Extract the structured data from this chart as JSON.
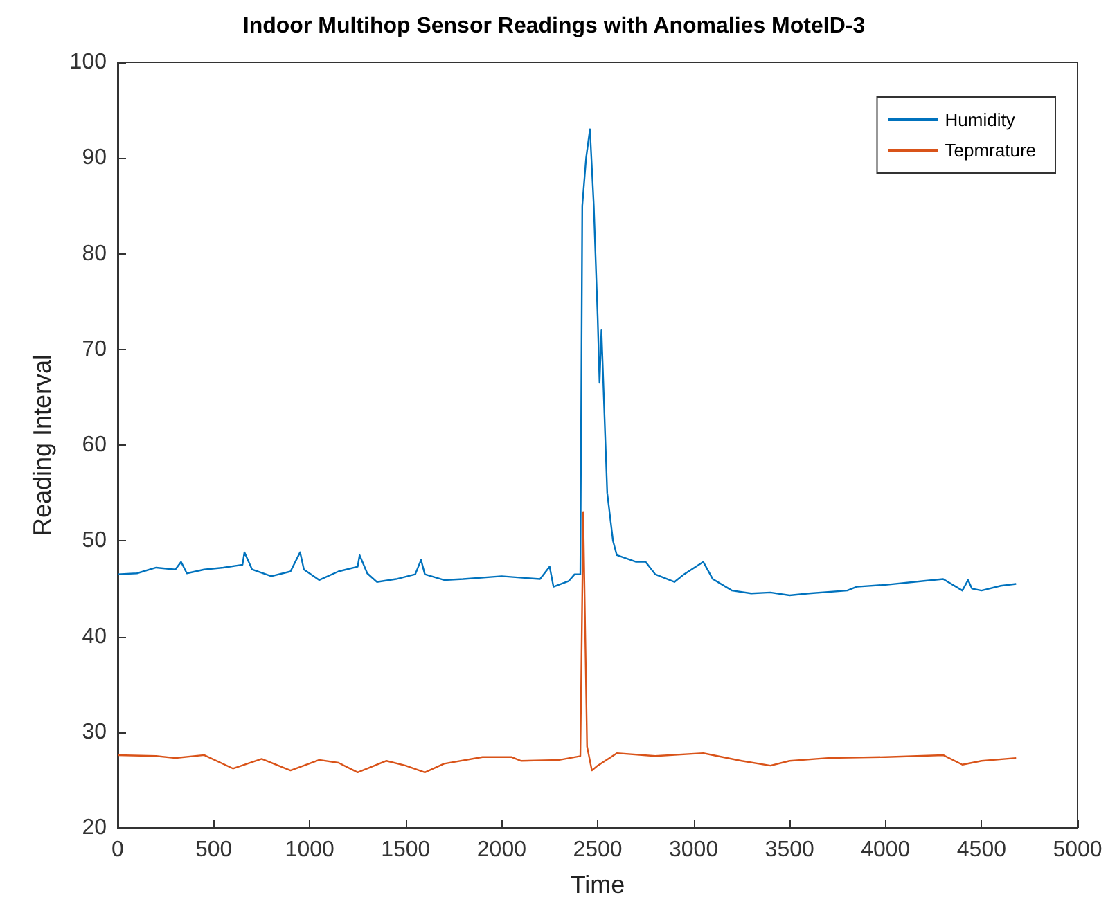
{
  "chart_data": {
    "type": "line",
    "title": "Indoor Multihop Sensor Readings with Anomalies MoteID-3",
    "xlabel": "Time",
    "ylabel": "Reading Interval",
    "xlim": [
      0,
      5000
    ],
    "xticks": [
      0,
      500,
      1000,
      1500,
      2000,
      2500,
      3000,
      3500,
      4000,
      4500,
      5000
    ],
    "ylim": [
      20,
      100
    ],
    "yticks": [
      20,
      30,
      40,
      50,
      60,
      70,
      80,
      90,
      100
    ],
    "legend": "top right",
    "grid": false,
    "marker": "none",
    "line_style": "solid",
    "series": [
      {
        "name": "Humidity",
        "color": "#0072bd",
        "x": [
          0,
          100,
          200,
          300,
          330,
          360,
          450,
          550,
          650,
          660,
          700,
          800,
          900,
          950,
          970,
          1050,
          1150,
          1250,
          1260,
          1300,
          1350,
          1450,
          1550,
          1580,
          1600,
          1700,
          1800,
          2000,
          2200,
          2250,
          2270,
          2350,
          2380,
          2410,
          2420,
          2440,
          2460,
          2480,
          2500,
          2510,
          2520,
          2550,
          2580,
          2600,
          2700,
          2750,
          2800,
          2900,
          2950,
          3050,
          3100,
          3200,
          3300,
          3400,
          3500,
          3600,
          3800,
          3850,
          4000,
          4200,
          4300,
          4400,
          4430,
          4450,
          4500,
          4600,
          4680
        ],
        "values": [
          46.5,
          46.6,
          47.2,
          47.0,
          47.8,
          46.6,
          47.0,
          47.2,
          47.5,
          48.8,
          47.0,
          46.3,
          46.8,
          48.8,
          47.0,
          45.9,
          46.8,
          47.3,
          48.5,
          46.6,
          45.7,
          46.0,
          46.5,
          48.0,
          46.5,
          45.9,
          46.0,
          46.3,
          46.0,
          47.3,
          45.2,
          45.8,
          46.5,
          46.5,
          85,
          90,
          93,
          85,
          73.5,
          66.5,
          72,
          55,
          50,
          48.5,
          47.8,
          47.8,
          46.5,
          45.7,
          46.5,
          47.8,
          46,
          44.8,
          44.5,
          44.6,
          44.3,
          44.5,
          44.8,
          45.2,
          45.4,
          45.8,
          46.0,
          44.8,
          45.9,
          45.0,
          44.8,
          45.3,
          45.5
        ]
      },
      {
        "name": "Tepmrature",
        "color": "#d95319",
        "x": [
          0,
          200,
          300,
          450,
          600,
          750,
          900,
          1050,
          1150,
          1250,
          1400,
          1500,
          1600,
          1700,
          1900,
          2050,
          2100,
          2300,
          2410,
          2425,
          2445,
          2470,
          2500,
          2600,
          2800,
          3050,
          3250,
          3400,
          3500,
          3700,
          4000,
          4300,
          4400,
          4500,
          4680
        ],
        "values": [
          27.6,
          27.5,
          27.3,
          27.6,
          26.2,
          27.2,
          26.0,
          27.1,
          26.8,
          25.8,
          27.0,
          26.5,
          25.8,
          26.7,
          27.4,
          27.4,
          27.0,
          27.1,
          27.5,
          53,
          28.5,
          26,
          26.5,
          27.8,
          27.5,
          27.8,
          27.0,
          26.5,
          27.0,
          27.3,
          27.4,
          27.6,
          26.6,
          27.0,
          27.3
        ]
      }
    ]
  }
}
